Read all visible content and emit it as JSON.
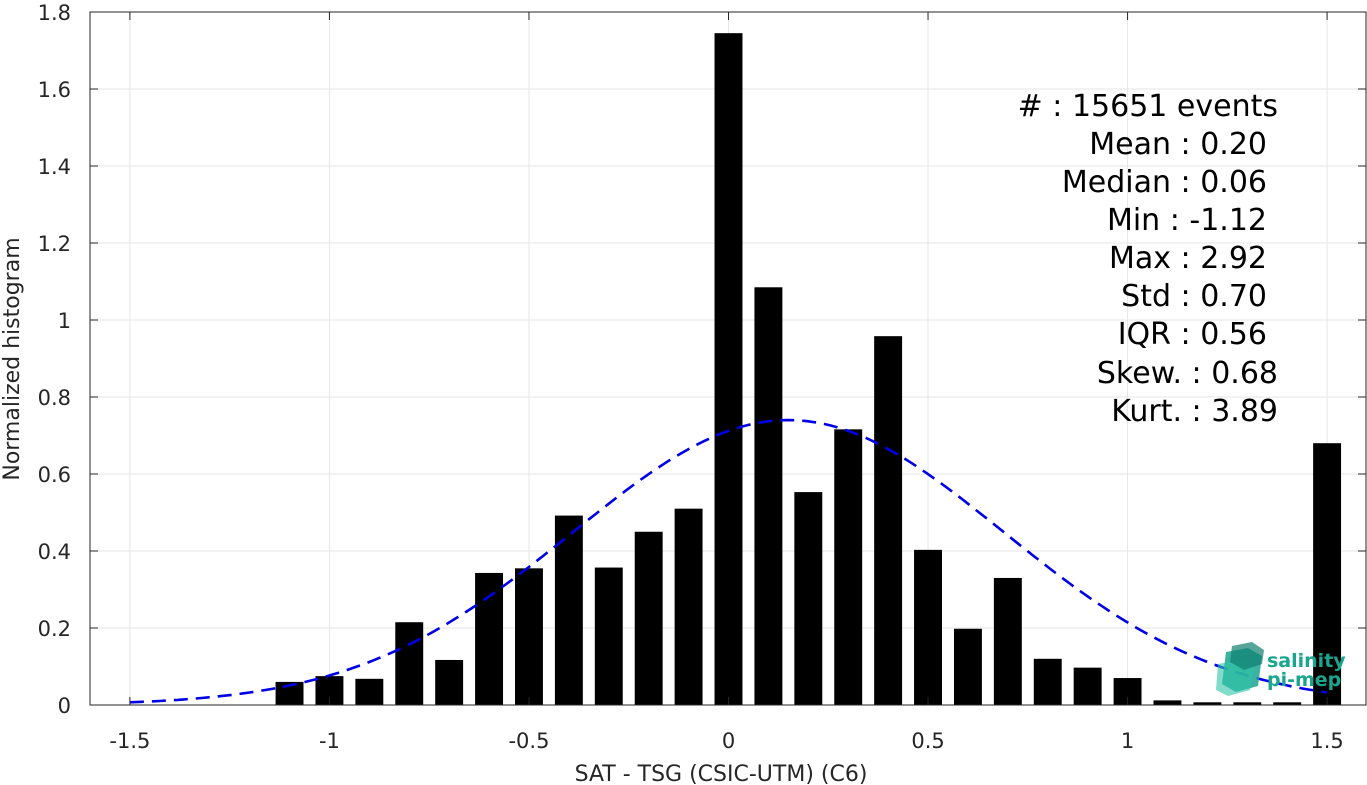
{
  "chart_data": {
    "type": "bar",
    "xlabel": "SAT - TSG (CSIC-UTM) (C6)",
    "ylabel": "Normalized histogram",
    "xlim": [
      -1.6,
      1.6
    ],
    "ylim": [
      0,
      1.8
    ],
    "grid": true,
    "bar_width": 0.07,
    "x_ticks": [
      {
        "value": -1.5,
        "label": "-1.5"
      },
      {
        "value": -1.0,
        "label": "-1"
      },
      {
        "value": -0.5,
        "label": "-0.5"
      },
      {
        "value": 0.0,
        "label": "0"
      },
      {
        "value": 0.5,
        "label": "0.5"
      },
      {
        "value": 1.0,
        "label": "1"
      },
      {
        "value": 1.5,
        "label": "1.5"
      }
    ],
    "y_ticks": [
      {
        "value": 0,
        "label": "0"
      },
      {
        "value": 0.2,
        "label": "0.2"
      },
      {
        "value": 0.4,
        "label": "0.4"
      },
      {
        "value": 0.6,
        "label": "0.6"
      },
      {
        "value": 0.8,
        "label": "0.8"
      },
      {
        "value": 1.0,
        "label": "1"
      },
      {
        "value": 1.2,
        "label": "1.2"
      },
      {
        "value": 1.4,
        "label": "1.4"
      },
      {
        "value": 1.6,
        "label": "1.6"
      },
      {
        "value": 1.8,
        "label": "1.8"
      }
    ],
    "bars": {
      "x": [
        -1.1,
        -1.0,
        -0.9,
        -0.8,
        -0.7,
        -0.6,
        -0.5,
        -0.4,
        -0.3,
        -0.2,
        -0.1,
        0.0,
        0.1,
        0.2,
        0.3,
        0.4,
        0.5,
        0.6,
        0.7,
        0.8,
        0.9,
        1.0,
        1.1,
        1.2,
        1.3,
        1.4,
        1.5
      ],
      "values": [
        0.06,
        0.075,
        0.068,
        0.215,
        0.117,
        0.343,
        0.355,
        0.492,
        0.357,
        0.45,
        0.51,
        1.745,
        1.085,
        0.553,
        0.716,
        0.958,
        0.403,
        0.198,
        0.33,
        0.12,
        0.097,
        0.07,
        0.012,
        0.007,
        0.007,
        0.007,
        0.68
      ],
      "color": "#000000"
    },
    "fit_curve": {
      "style": "dashed",
      "color": "#0000e6",
      "mean": 0.15,
      "std": 0.54,
      "x_range": [
        -1.5,
        1.5
      ],
      "peak": 0.74
    },
    "stats": [
      {
        "label": "#  : 15651 events"
      },
      {
        "label": "Mean : 0.20"
      },
      {
        "label": "Median : 0.06"
      },
      {
        "label": "Min : -1.12"
      },
      {
        "label": "Max : 2.92"
      },
      {
        "label": "Std : 0.70"
      },
      {
        "label": "IQR : 0.56"
      },
      {
        "label": "Skew. : 0.68"
      },
      {
        "label": "Kurt. : 3.89"
      }
    ]
  },
  "logo": {
    "line1": "salinity",
    "line2": "pi-mep",
    "color": "#1aa58f"
  }
}
